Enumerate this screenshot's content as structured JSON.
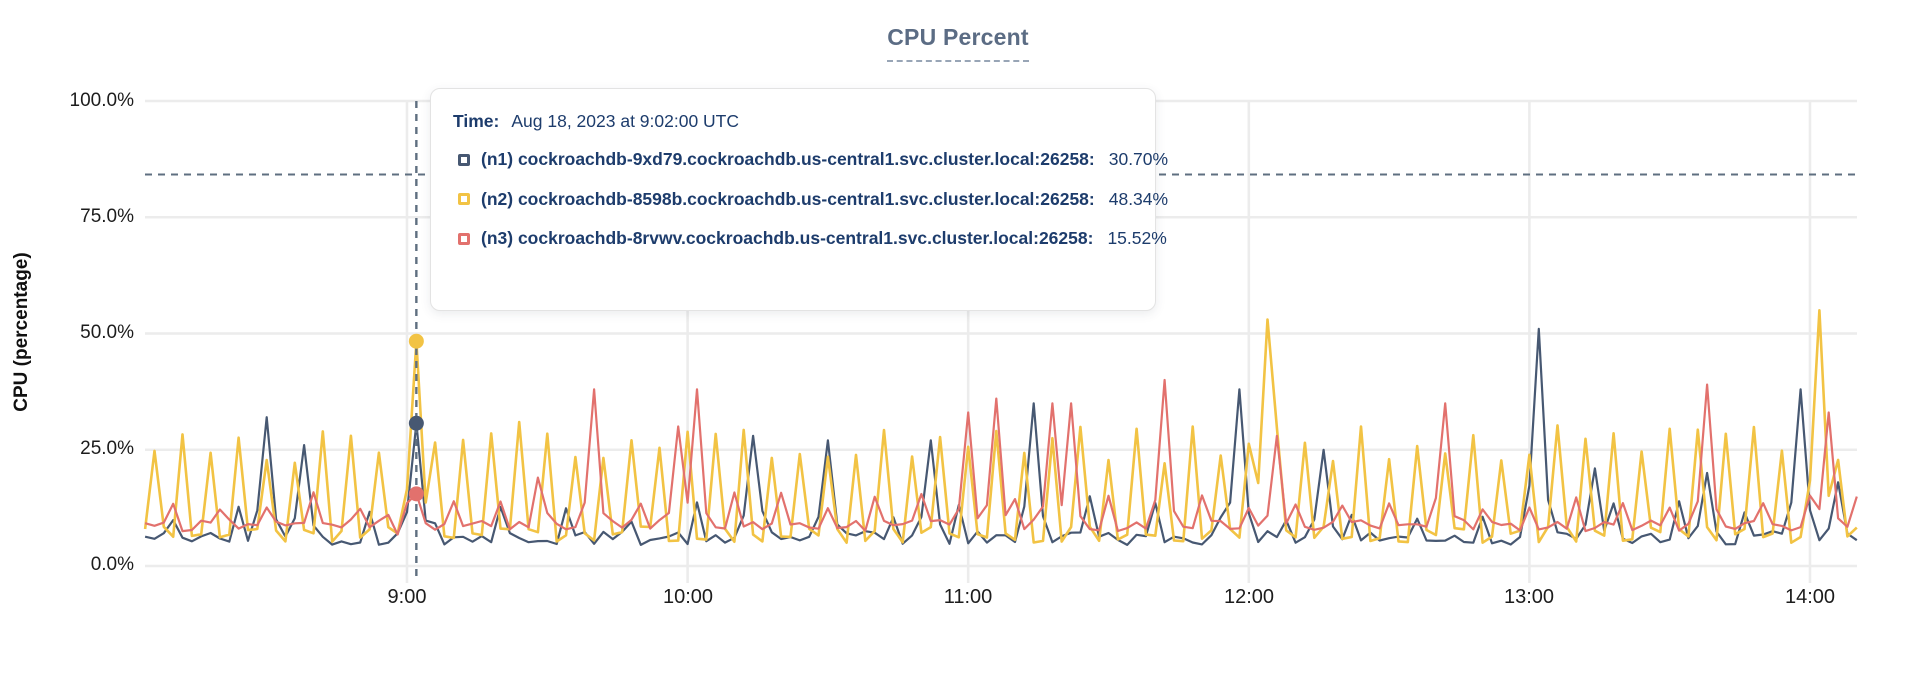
{
  "title": {
    "text": "CPU Percent",
    "color": "#5b6c84"
  },
  "y_axis": {
    "label": "CPU (percentage)",
    "ticks": [
      "100.0%",
      "75.0%",
      "50.0%",
      "25.0%",
      "0.0%"
    ]
  },
  "x_axis": {
    "ticks": [
      "9:00",
      "10:00",
      "11:00",
      "12:00",
      "13:00",
      "14:00"
    ]
  },
  "tooltip": {
    "time_label": "Time:",
    "time_value": "Aug 18, 2023 at 9:02:00 UTC",
    "rows": [
      {
        "swatch_color": "#475872",
        "label": "(n1) cockroachdb-9xd79.cockroachdb.us-central1.svc.cluster.local:26258:",
        "value": "30.70%"
      },
      {
        "swatch_color": "#f2c344",
        "label": "(n2) cockroachdb-8598b.cockroachdb.us-central1.svc.cluster.local:26258:",
        "value": "48.34%"
      },
      {
        "swatch_color": "#e2716d",
        "label": "(n3) cockroachdb-8rvwv.cockroachdb.us-central1.svc.cluster.local:26258:",
        "value": "15.52%"
      }
    ]
  },
  "chart_data": {
    "type": "line",
    "title": "CPU Percent",
    "xlabel": "",
    "ylabel": "CPU (percentage)",
    "ylim": [
      0,
      100
    ],
    "y_ticks_pct": [
      0,
      25,
      50,
      75,
      100
    ],
    "x_tick_labels": [
      "9:00",
      "10:00",
      "11:00",
      "12:00",
      "13:00",
      "14:00"
    ],
    "x_tick_minutes": [
      540,
      600,
      660,
      720,
      780,
      840
    ],
    "time_range_min": {
      "start": 484,
      "end": 850,
      "step": 2
    },
    "grid": true,
    "colors": {
      "grid": "#ececec",
      "crosshair": "#5f6f80",
      "axis_text": "#1c1c1c"
    },
    "hover": {
      "time_label": "9:02",
      "time_min": 542,
      "cursor_y_pct": 84.2,
      "values": {
        "n1": 30.7,
        "n2": 48.34,
        "n3": 15.52
      }
    },
    "series": [
      {
        "id": "n1",
        "name": "(n1) cockroachdb-9xd79.cockroachdb.us-central1.svc.cluster.local:26258",
        "color": "#475872",
        "stroke_width": 2.2,
        "baseline_pct": 4.5,
        "noise_pct": 3,
        "bump_period_min": 14,
        "bump_pct": [
          9,
          14
        ],
        "peaks": [
          [
            509,
            32
          ],
          [
            518,
            26
          ],
          [
            542,
            30.7
          ],
          [
            614,
            28
          ],
          [
            630,
            27
          ],
          [
            652,
            27
          ],
          [
            673,
            35
          ],
          [
            685,
            15
          ],
          [
            717,
            38
          ],
          [
            735,
            25
          ],
          [
            781,
            51
          ],
          [
            794,
            21
          ],
          [
            817,
            20
          ],
          [
            837,
            38
          ],
          [
            846,
            18
          ]
        ]
      },
      {
        "id": "n2",
        "name": "(n2) cockroachdb-8598b.cockroachdb.us-central1.svc.cluster.local:26258",
        "color": "#f2c344",
        "stroke_width": 2.6,
        "baseline_pct": 5,
        "noise_pct": 3.5,
        "spike_period_min": 6,
        "spike_pct": [
          22,
          31
        ],
        "peaks": [
          [
            542,
            48.34
          ],
          [
            723,
            53
          ],
          [
            842,
            55
          ]
        ]
      },
      {
        "id": "n3",
        "name": "(n3) cockroachdb-8rvwv.cockroachdb.us-central1.svc.cluster.local:26258",
        "color": "#e2716d",
        "stroke_width": 2.2,
        "baseline_pct": 7.5,
        "noise_pct": 2.5,
        "bump_period_min": 10,
        "bump_pct": [
          12,
          16
        ],
        "peaks": [
          [
            536,
            11
          ],
          [
            539,
            13.5
          ],
          [
            542,
            15.52
          ],
          [
            567,
            19
          ],
          [
            580,
            38
          ],
          [
            598,
            30
          ],
          [
            601,
            38
          ],
          [
            660,
            33
          ],
          [
            665,
            36
          ],
          [
            677,
            35
          ],
          [
            681,
            35
          ],
          [
            702,
            40
          ],
          [
            726,
            28
          ],
          [
            762,
            35
          ],
          [
            818,
            39
          ],
          [
            844,
            33
          ]
        ]
      }
    ]
  }
}
